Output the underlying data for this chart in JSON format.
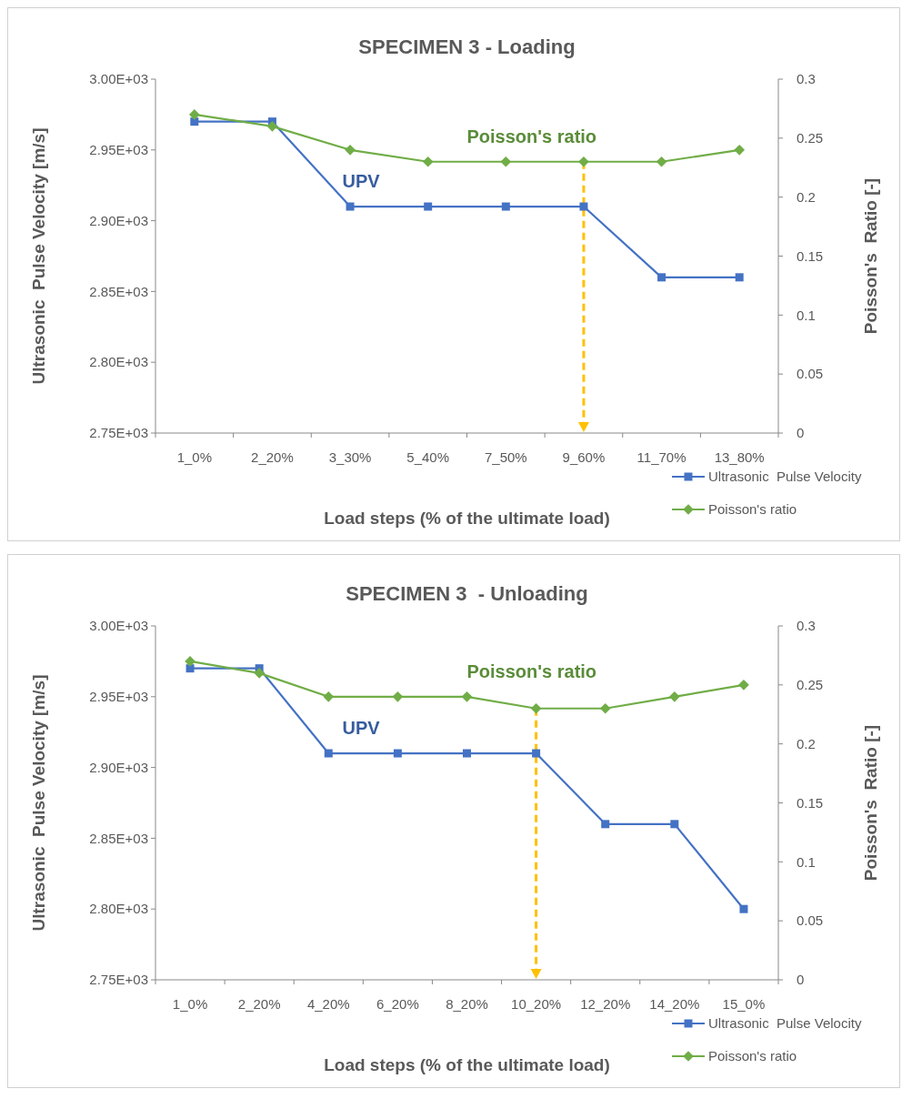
{
  "chart_data": [
    {
      "type": "line",
      "title": "SPECIMEN 3 - Loading",
      "xlabel": "Load steps (% of the ultimate load)",
      "ylabel": "Ultrasonic  Pulse Velocity [m/s]",
      "y2label": "Poisson's  Ratio [-]",
      "categories": [
        "1_0%",
        "2_20%",
        "3_30%",
        "5_40%",
        "7_50%",
        "9_60%",
        "11_70%",
        "13_80%"
      ],
      "series": [
        {
          "name": "Ultrasonic  Pulse Velocity",
          "color": "#4472c4",
          "marker": "square",
          "values": [
            2970,
            2970,
            2910,
            2910,
            2910,
            2910,
            2860,
            2860
          ]
        },
        {
          "name": "Poisson's ratio",
          "color": "#70ad47",
          "marker": "diamond",
          "axis": "y2",
          "values": [
            0.27,
            0.26,
            0.24,
            0.23,
            0.23,
            0.23,
            0.23,
            0.24
          ]
        }
      ],
      "ylim": [
        2750,
        3000
      ],
      "yticks": [
        {
          "value": 2750,
          "label": "2.75E+03"
        },
        {
          "value": 2800,
          "label": "2.80E+03"
        },
        {
          "value": 2850,
          "label": "2.85E+03"
        },
        {
          "value": 2900,
          "label": "2.90E+03"
        },
        {
          "value": 2950,
          "label": "2.95E+03"
        },
        {
          "value": 3000,
          "label": "3.00E+03"
        }
      ],
      "y2lim": [
        0,
        0.3
      ],
      "y2ticks": [
        0,
        0.05,
        0.1,
        0.15,
        0.2,
        0.25,
        0.3
      ],
      "annotations": [
        "UPV",
        "Poisson's ratio"
      ],
      "ref_lines": [
        {
          "axis": "x",
          "value": "9_60%",
          "color": "#ffc000",
          "line_style": "dashed"
        }
      ],
      "legend": "bottom right"
    },
    {
      "type": "line",
      "title": "SPECIMEN 3  - Unloading",
      "xlabel": "Load steps (% of the ultimate load)",
      "ylabel": "Ultrasonic  Pulse Velocity [m/s]",
      "y2label": "Poisson's  Ratio [-]",
      "categories": [
        "1_0%",
        "2_20%",
        "4_20%",
        "6_20%",
        "8_20%",
        "10_20%",
        "12_20%",
        "14_20%",
        "15_0%"
      ],
      "series": [
        {
          "name": "Ultrasonic  Pulse Velocity",
          "color": "#4472c4",
          "marker": "square",
          "values": [
            2970,
            2970,
            2910,
            2910,
            2910,
            2910,
            2860,
            2860,
            2800
          ]
        },
        {
          "name": "Poisson's ratio",
          "color": "#70ad47",
          "marker": "diamond",
          "axis": "y2",
          "values": [
            0.27,
            0.26,
            0.24,
            0.24,
            0.24,
            0.23,
            0.23,
            0.24,
            0.25
          ]
        }
      ],
      "ylim": [
        2750,
        3000
      ],
      "yticks": [
        {
          "value": 2750,
          "label": "2.75E+03"
        },
        {
          "value": 2800,
          "label": "2.80E+03"
        },
        {
          "value": 2850,
          "label": "2.85E+03"
        },
        {
          "value": 2900,
          "label": "2.90E+03"
        },
        {
          "value": 2950,
          "label": "2.95E+03"
        },
        {
          "value": 3000,
          "label": "3.00E+03"
        }
      ],
      "y2lim": [
        0,
        0.3
      ],
      "y2ticks": [
        0,
        0.05,
        0.1,
        0.15,
        0.2,
        0.25,
        0.3
      ],
      "annotations": [
        "UPV",
        "Poisson's ratio"
      ],
      "ref_lines": [
        {
          "axis": "x",
          "value": "10_20%",
          "color": "#ffc000",
          "line_style": "dashed"
        }
      ],
      "legend": "bottom right"
    }
  ]
}
